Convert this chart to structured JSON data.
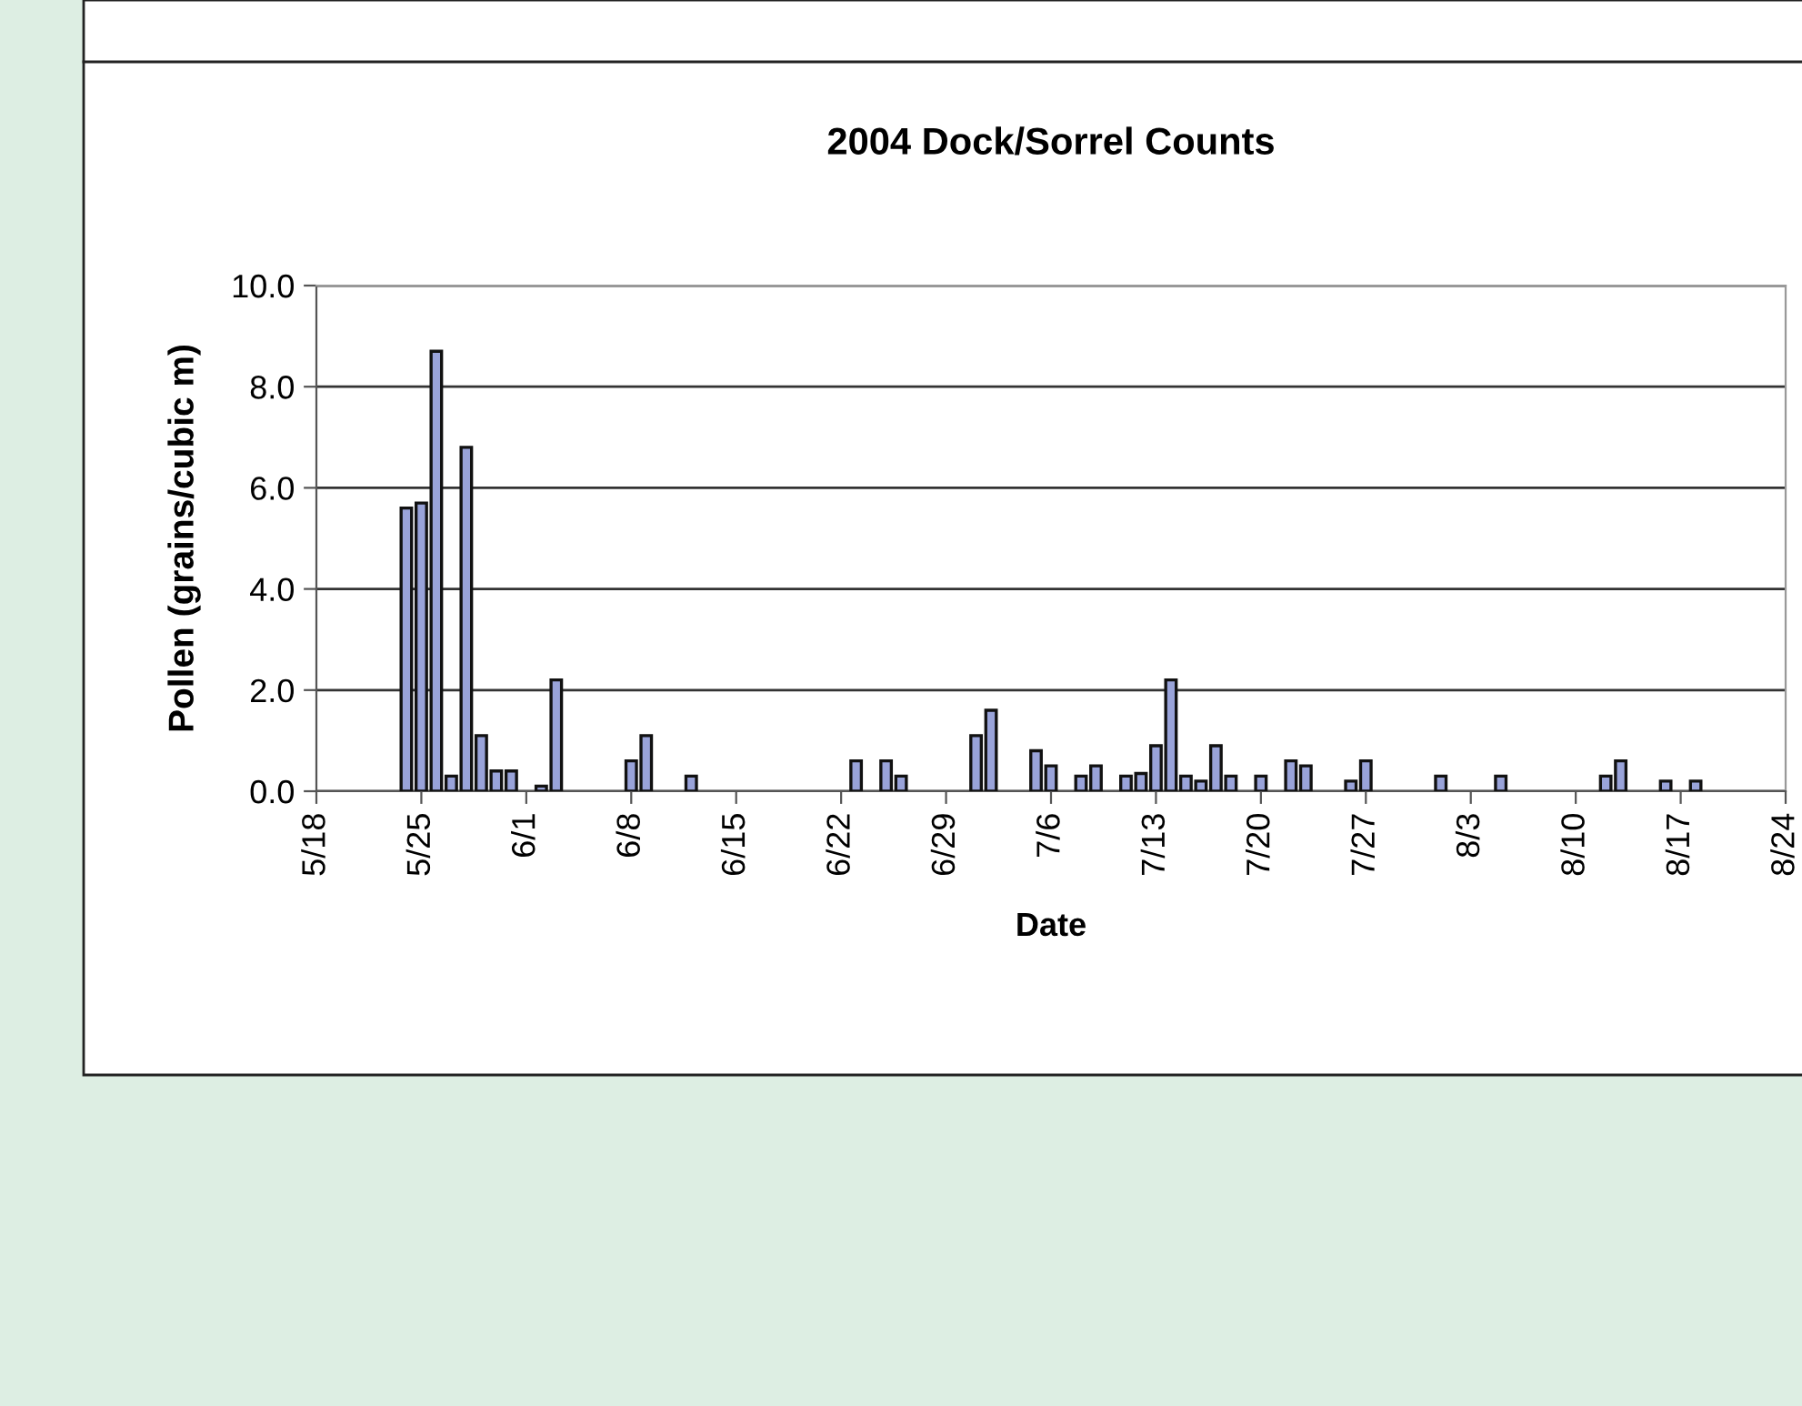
{
  "chart_data": {
    "type": "bar",
    "title": "2004 Dock/Sorrel Counts",
    "xlabel": "Date",
    "ylabel": "Pollen (grains/cubic m)",
    "x": [
      "2004-05-24",
      "2004-05-25",
      "2004-05-26",
      "2004-05-27",
      "2004-05-28",
      "2004-05-29",
      "2004-05-30",
      "2004-05-31",
      "2004-06-02",
      "2004-06-03",
      "2004-06-08",
      "2004-06-09",
      "2004-06-12",
      "2004-06-23",
      "2004-06-25",
      "2004-06-26",
      "2004-07-01",
      "2004-07-02",
      "2004-07-05",
      "2004-07-06",
      "2004-07-08",
      "2004-07-09",
      "2004-07-11",
      "2004-07-12",
      "2004-07-13",
      "2004-07-14",
      "2004-07-15",
      "2004-07-16",
      "2004-07-17",
      "2004-07-18",
      "2004-07-20",
      "2004-07-22",
      "2004-07-23",
      "2004-07-26",
      "2004-07-27",
      "2004-08-01",
      "2004-08-05",
      "2004-08-12",
      "2004-08-13",
      "2004-08-16",
      "2004-08-18"
    ],
    "values": [
      5.6,
      5.7,
      8.7,
      0.3,
      6.8,
      1.1,
      0.4,
      0.4,
      0.1,
      2.2,
      0.6,
      1.1,
      0.3,
      0.6,
      0.6,
      0.3,
      1.1,
      1.6,
      0.8,
      0.5,
      0.3,
      0.5,
      0.3,
      0.35,
      0.9,
      2.2,
      0.3,
      0.2,
      0.9,
      0.3,
      0.3,
      0.6,
      0.5,
      0.2,
      0.6,
      0.3,
      0.3,
      0.3,
      0.6,
      0.2,
      0.2
    ],
    "color": "#99a3d9",
    "xlim": [
      "2004-05-18",
      "2004-08-24"
    ],
    "xticks": [
      {
        "value": "2004-05-18",
        "label": "5/18"
      },
      {
        "value": "2004-05-25",
        "label": "5/25"
      },
      {
        "value": "2004-06-01",
        "label": "6/1"
      },
      {
        "value": "2004-06-08",
        "label": "6/8"
      },
      {
        "value": "2004-06-15",
        "label": "6/15"
      },
      {
        "value": "2004-06-22",
        "label": "6/22"
      },
      {
        "value": "2004-06-29",
        "label": "6/29"
      },
      {
        "value": "2004-07-06",
        "label": "7/6"
      },
      {
        "value": "2004-07-13",
        "label": "7/13"
      },
      {
        "value": "2004-07-20",
        "label": "7/20"
      },
      {
        "value": "2004-07-27",
        "label": "7/27"
      },
      {
        "value": "2004-08-03",
        "label": "8/3"
      },
      {
        "value": "2004-08-10",
        "label": "8/10"
      },
      {
        "value": "2004-08-17",
        "label": "8/17"
      },
      {
        "value": "2004-08-24",
        "label": "8/24"
      }
    ],
    "ylim": [
      0,
      10
    ],
    "yticks": [
      {
        "value": 0,
        "label": "0.0"
      },
      {
        "value": 2,
        "label": "2.0"
      },
      {
        "value": 4,
        "label": "4.0"
      },
      {
        "value": 6,
        "label": "6.0"
      },
      {
        "value": 8,
        "label": "8.0"
      },
      {
        "value": 10,
        "label": "10.0"
      }
    ],
    "grid": "y"
  }
}
